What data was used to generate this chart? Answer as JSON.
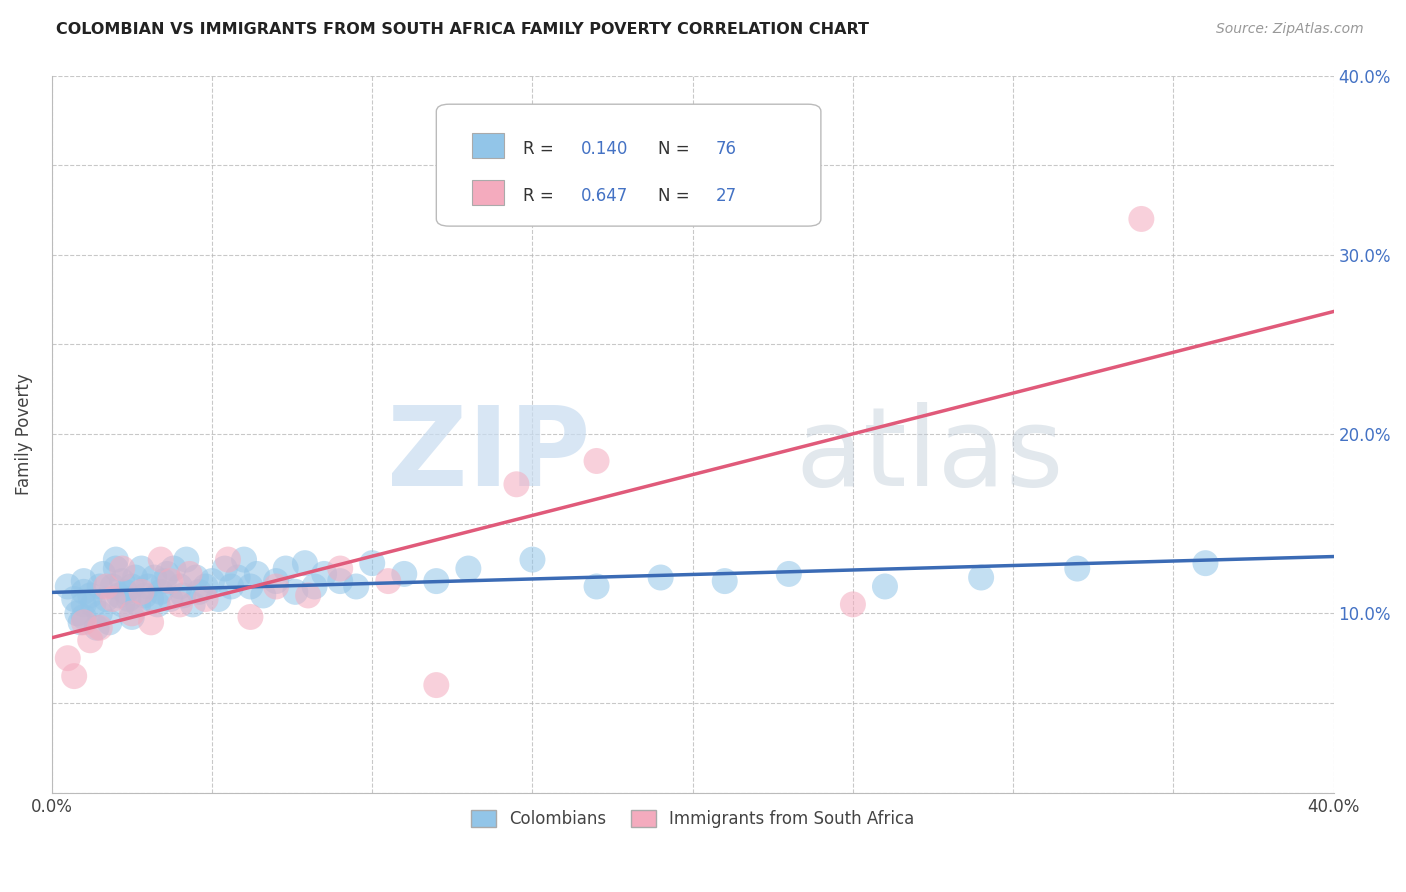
{
  "title": "COLOMBIAN VS IMMIGRANTS FROM SOUTH AFRICA FAMILY POVERTY CORRELATION CHART",
  "source": "Source: ZipAtlas.com",
  "ylabel": "Family Poverty",
  "xlim": [
    0.0,
    0.4
  ],
  "ylim": [
    0.0,
    0.4
  ],
  "xticks": [
    0.0,
    0.05,
    0.1,
    0.15,
    0.2,
    0.25,
    0.3,
    0.35,
    0.4
  ],
  "yticks": [
    0.0,
    0.05,
    0.1,
    0.15,
    0.2,
    0.25,
    0.3,
    0.35,
    0.4
  ],
  "colombian_R": 0.14,
  "colombian_N": 76,
  "sa_R": 0.647,
  "sa_N": 27,
  "colombian_color": "#92C5E8",
  "sa_color": "#F4ABBE",
  "colombian_line_color": "#3B6BB5",
  "sa_line_color": "#E05A7A",
  "right_tick_color": "#4472C4",
  "colombian_x": [
    0.005,
    0.007,
    0.008,
    0.009,
    0.01,
    0.01,
    0.01,
    0.01,
    0.012,
    0.013,
    0.014,
    0.015,
    0.015,
    0.016,
    0.017,
    0.018,
    0.019,
    0.02,
    0.02,
    0.021,
    0.022,
    0.022,
    0.023,
    0.024,
    0.025,
    0.025,
    0.026,
    0.027,
    0.028,
    0.029,
    0.03,
    0.031,
    0.032,
    0.033,
    0.034,
    0.035,
    0.036,
    0.037,
    0.038,
    0.04,
    0.041,
    0.042,
    0.044,
    0.045,
    0.046,
    0.048,
    0.05,
    0.052,
    0.054,
    0.056,
    0.058,
    0.06,
    0.062,
    0.064,
    0.066,
    0.07,
    0.073,
    0.076,
    0.079,
    0.082,
    0.085,
    0.09,
    0.095,
    0.1,
    0.11,
    0.12,
    0.13,
    0.15,
    0.17,
    0.19,
    0.21,
    0.23,
    0.26,
    0.29,
    0.32,
    0.36
  ],
  "colombian_y": [
    0.115,
    0.108,
    0.1,
    0.095,
    0.112,
    0.105,
    0.118,
    0.098,
    0.11,
    0.105,
    0.092,
    0.115,
    0.1,
    0.122,
    0.108,
    0.095,
    0.115,
    0.125,
    0.13,
    0.11,
    0.118,
    0.105,
    0.112,
    0.108,
    0.098,
    0.115,
    0.12,
    0.105,
    0.125,
    0.11,
    0.115,
    0.108,
    0.12,
    0.105,
    0.112,
    0.118,
    0.122,
    0.108,
    0.125,
    0.115,
    0.11,
    0.13,
    0.105,
    0.12,
    0.112,
    0.115,
    0.118,
    0.108,
    0.125,
    0.115,
    0.12,
    0.13,
    0.115,
    0.122,
    0.11,
    0.118,
    0.125,
    0.112,
    0.128,
    0.115,
    0.122,
    0.118,
    0.115,
    0.128,
    0.122,
    0.118,
    0.125,
    0.13,
    0.115,
    0.12,
    0.118,
    0.122,
    0.115,
    0.12,
    0.125,
    0.128
  ],
  "sa_x": [
    0.005,
    0.007,
    0.01,
    0.012,
    0.015,
    0.017,
    0.019,
    0.022,
    0.025,
    0.028,
    0.031,
    0.034,
    0.037,
    0.04,
    0.043,
    0.048,
    0.055,
    0.062,
    0.07,
    0.08,
    0.09,
    0.105,
    0.12,
    0.145,
    0.17,
    0.25,
    0.34
  ],
  "sa_y": [
    0.075,
    0.065,
    0.095,
    0.085,
    0.092,
    0.115,
    0.108,
    0.125,
    0.1,
    0.112,
    0.095,
    0.13,
    0.118,
    0.105,
    0.122,
    0.108,
    0.13,
    0.098,
    0.115,
    0.11,
    0.125,
    0.118,
    0.06,
    0.172,
    0.185,
    0.105,
    0.32
  ]
}
